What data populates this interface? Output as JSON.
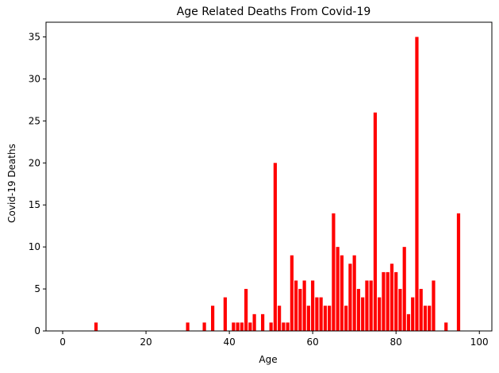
{
  "chart_data": {
    "type": "bar",
    "title": "Age Related Deaths From Covid-19",
    "xlabel": "Age",
    "ylabel": "Covid-19 Deaths",
    "bar_color": "#ff0000",
    "xlim": [
      -4,
      103
    ],
    "ylim": [
      0,
      36.75
    ],
    "xticks": [
      0,
      20,
      40,
      60,
      80,
      100
    ],
    "yticks": [
      0,
      5,
      10,
      15,
      20,
      25,
      30,
      35
    ],
    "grid": false,
    "x": [
      8,
      30,
      34,
      36,
      39,
      41,
      42,
      43,
      44,
      45,
      46,
      48,
      50,
      51,
      52,
      53,
      54,
      55,
      56,
      57,
      58,
      59,
      60,
      61,
      62,
      63,
      64,
      65,
      66,
      67,
      68,
      69,
      70,
      71,
      72,
      73,
      74,
      75,
      76,
      77,
      78,
      79,
      80,
      81,
      82,
      83,
      84,
      85,
      86,
      87,
      88,
      89,
      92,
      95
    ],
    "values": [
      1,
      1,
      1,
      3,
      4,
      1,
      1,
      1,
      5,
      1,
      2,
      2,
      1,
      20,
      3,
      1,
      1,
      9,
      6,
      5,
      6,
      3,
      6,
      4,
      4,
      3,
      3,
      14,
      10,
      9,
      3,
      8,
      9,
      5,
      4,
      6,
      6,
      26,
      4,
      7,
      7,
      8,
      7,
      5,
      10,
      2,
      4,
      35,
      5,
      3,
      3,
      6,
      1,
      14
    ]
  }
}
